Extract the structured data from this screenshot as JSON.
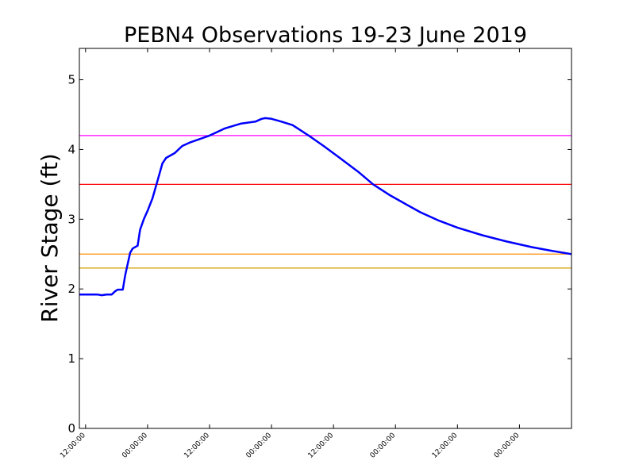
{
  "chart_data": {
    "type": "line",
    "title": "PEBN4 Observations 19-23 June 2019",
    "xlabel": "",
    "ylabel": "River Stage (ft)",
    "ylim": [
      0,
      5.45
    ],
    "xlim": [
      -0.05,
      3.92
    ],
    "x_unit": "days since 19 June 2019 12:00",
    "yticks": [
      0,
      1,
      2,
      3,
      4,
      5
    ],
    "xticks": [
      {
        "x": 0.0,
        "label": "12:00:00"
      },
      {
        "x": 0.5,
        "label": "00:00:00"
      },
      {
        "x": 1.0,
        "label": "12:00:00"
      },
      {
        "x": 1.5,
        "label": "00:00:00"
      },
      {
        "x": 2.0,
        "label": "12:00:00"
      },
      {
        "x": 2.5,
        "label": "00:00:00"
      },
      {
        "x": 3.0,
        "label": "12:00:00"
      },
      {
        "x": 3.5,
        "label": "00:00:00"
      }
    ],
    "thresholds": [
      {
        "name": "threshold-magenta",
        "value": 4.2,
        "color": "#ff00ff"
      },
      {
        "name": "threshold-red",
        "value": 3.5,
        "color": "#ff0000"
      },
      {
        "name": "threshold-orange",
        "value": 2.5,
        "color": "#ff8c00"
      },
      {
        "name": "threshold-gold",
        "value": 2.3,
        "color": "#d4a000"
      }
    ],
    "series": [
      {
        "name": "River Stage",
        "color": "#0000ff",
        "x": [
          -0.05,
          0.05,
          0.1,
          0.13,
          0.17,
          0.21,
          0.24,
          0.26,
          0.3,
          0.32,
          0.36,
          0.38,
          0.42,
          0.44,
          0.47,
          0.5,
          0.54,
          0.58,
          0.62,
          0.65,
          0.69,
          0.72,
          0.78,
          0.84,
          0.92,
          1.0,
          1.12,
          1.25,
          1.37,
          1.42,
          1.45,
          1.5,
          1.58,
          1.67,
          1.8,
          1.92,
          2.05,
          2.2,
          2.32,
          2.45,
          2.55,
          2.7,
          2.85,
          3.0,
          3.2,
          3.4,
          3.6,
          3.75,
          3.92
        ],
        "values": [
          1.92,
          1.92,
          1.92,
          1.91,
          1.92,
          1.92,
          1.97,
          1.99,
          1.99,
          2.2,
          2.52,
          2.58,
          2.62,
          2.85,
          3.0,
          3.12,
          3.3,
          3.55,
          3.8,
          3.88,
          3.92,
          3.95,
          4.05,
          4.1,
          4.15,
          4.2,
          4.3,
          4.37,
          4.4,
          4.44,
          4.45,
          4.44,
          4.4,
          4.35,
          4.2,
          4.05,
          3.88,
          3.68,
          3.5,
          3.35,
          3.25,
          3.1,
          2.98,
          2.88,
          2.77,
          2.68,
          2.6,
          2.55,
          2.5
        ]
      }
    ]
  }
}
